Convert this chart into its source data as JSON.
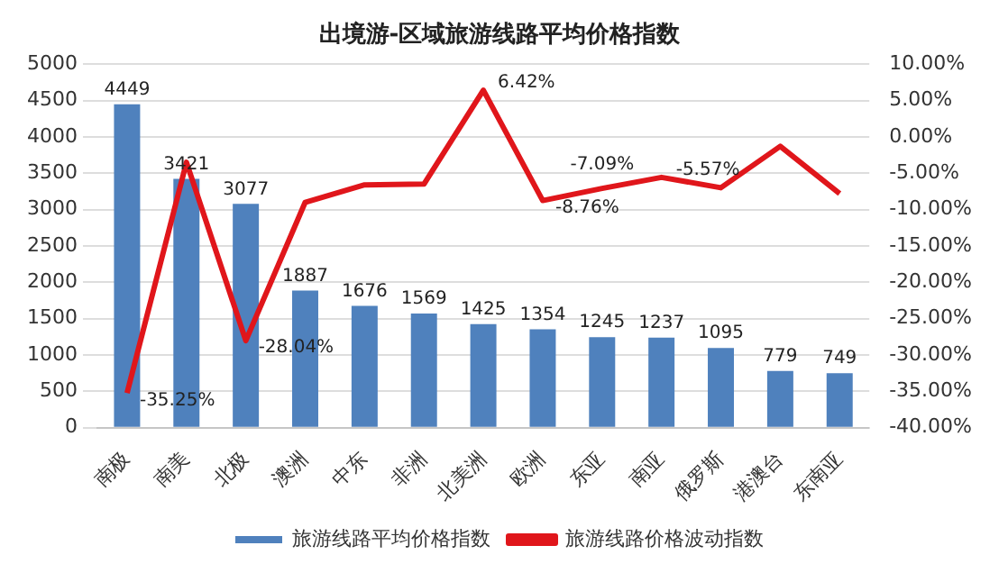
{
  "chart_data": {
    "type": "bar",
    "title": "出境游-区域旅游线路平均价格指数",
    "categories": [
      "南极",
      "南美",
      "北极",
      "澳洲",
      "中东",
      "非洲",
      "北美洲",
      "欧洲",
      "东亚",
      "南亚",
      "俄罗斯",
      "港澳台",
      "东南亚"
    ],
    "series": [
      {
        "name": "旅游线路平均价格指数",
        "color": "#4f81bd",
        "values": [
          4449,
          3421,
          3077,
          1887,
          1676,
          1569,
          1425,
          1354,
          1245,
          1237,
          1095,
          779,
          749
        ],
        "value_labels": [
          "4449",
          "3421",
          "3077",
          "1887",
          "1676",
          "1569",
          "1425",
          "1354",
          "1245",
          "1237",
          "1095",
          "779",
          "749"
        ]
      },
      {
        "name": "旅游线路价格波动指数",
        "type": "line",
        "axis": "y2",
        "color": "#e0161b",
        "values": [
          -35.25,
          -3.5,
          -28.04,
          -9,
          -6.6,
          -6.5,
          6.42,
          -8.76,
          -7.09,
          -5.57,
          -7,
          -1.3,
          -7.8
        ],
        "value_labels": [
          "-35.25%",
          null,
          "-28.04%",
          null,
          null,
          null,
          "6.42%",
          "-8.76%",
          "-7.09%",
          "-5.57%",
          null,
          null,
          null
        ]
      }
    ],
    "ylim": [
      0,
      5000
    ],
    "yticks": [
      0,
      500,
      1000,
      1500,
      2000,
      2500,
      3000,
      3500,
      4000,
      4500,
      5000
    ],
    "y2lim": [
      -40,
      10
    ],
    "y2ticks": [
      {
        "value": -40,
        "label": "-40.00%"
      },
      {
        "value": -35,
        "label": "-35.00%"
      },
      {
        "value": -30,
        "label": "-30.00%"
      },
      {
        "value": -25,
        "label": "-25.00%"
      },
      {
        "value": -20,
        "label": "-20.00%"
      },
      {
        "value": -15,
        "label": "-15.00%"
      },
      {
        "value": -10,
        "label": "-10.00%"
      },
      {
        "value": -5,
        "label": "-5.00%"
      },
      {
        "value": 0,
        "label": "0.00%"
      },
      {
        "value": 5,
        "label": "5.00%"
      },
      {
        "value": 10,
        "label": "10.00%"
      }
    ],
    "grid": "y",
    "legend": "bottom",
    "marker": "none",
    "line_style": "solid"
  }
}
